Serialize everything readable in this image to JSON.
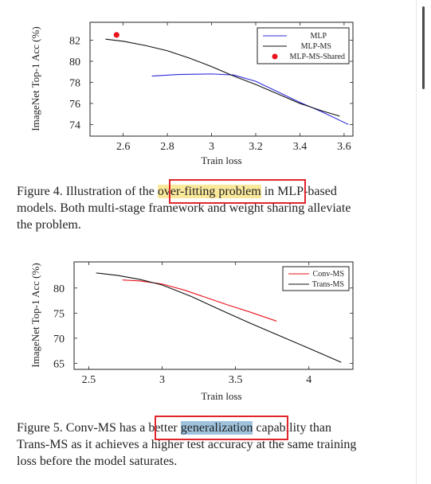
{
  "colors": {
    "mlp": "#2b2bdc",
    "mlp_ms": "#111111",
    "mlp_ms_shared": "#e8121c",
    "conv_ms": "#e8121c",
    "trans_ms": "#111111",
    "highlight_yellow": "#fbe99b",
    "highlight_blue": "#9fc3dd",
    "annotation_box": "#e0262b"
  },
  "figure4": {
    "caption_lines": [
      {
        "pre": "Figure 4.  Illustration of the ",
        "hl": "over-fitting problem",
        "post": " in MLP-based"
      },
      {
        "text": "models. Both multi-stage framework and weight sharing alleviate"
      },
      {
        "text": "the problem."
      }
    ]
  },
  "figure5": {
    "caption_lines": [
      {
        "pre": "Figure 5.  Conv-MS has a better ",
        "hl": "generalization",
        "post": " capability than"
      },
      {
        "text": "Trans-MS as it achieves a higher test accuracy at the same training"
      },
      {
        "text": "loss before the model saturates."
      }
    ]
  },
  "chart_data": [
    {
      "type": "line",
      "xlabel": "Train loss",
      "ylabel": "ImageNet Top-1 Acc (%)",
      "xlim": [
        2.45,
        3.64
      ],
      "ylim": [
        72.9,
        83.7
      ],
      "xticks": [
        2.6,
        2.8,
        3,
        3.2,
        3.4,
        3.6
      ],
      "xtick_labels": [
        "2.6",
        "2.8",
        "3",
        "3.2",
        "3.4",
        "3.6"
      ],
      "yticks": [
        74,
        76,
        78,
        80,
        82
      ],
      "ytick_labels": [
        "74",
        "76",
        "78",
        "80",
        "82"
      ],
      "grid": false,
      "legend_position": "top-right",
      "series": [
        {
          "name": "MLP",
          "kind": "line",
          "color": "#2b2bdc",
          "x": [
            2.73,
            2.85,
            3.0,
            3.1,
            3.2,
            3.3,
            3.4,
            3.5,
            3.62
          ],
          "y": [
            78.6,
            78.75,
            78.8,
            78.7,
            78.1,
            77.1,
            76.1,
            75.2,
            74.0
          ]
        },
        {
          "name": "MLP-MS",
          "kind": "line",
          "color": "#111111",
          "x": [
            2.52,
            2.6,
            2.7,
            2.8,
            2.9,
            3.0,
            3.1,
            3.2,
            3.3,
            3.4,
            3.5,
            3.58
          ],
          "y": [
            82.1,
            81.9,
            81.5,
            81.0,
            80.3,
            79.5,
            78.6,
            77.8,
            76.9,
            76.0,
            75.3,
            74.8
          ]
        },
        {
          "name": "MLP-MS-Shared",
          "kind": "point",
          "color": "#e8121c",
          "x": [
            2.57
          ],
          "y": [
            82.5
          ]
        }
      ]
    },
    {
      "type": "line",
      "xlabel": "Train loss",
      "ylabel": "ImageNet Top-1 Acc (%)",
      "xlim": [
        2.4,
        4.3
      ],
      "ylim": [
        63.8,
        85.2
      ],
      "xticks": [
        2.5,
        3,
        3.5,
        4
      ],
      "xtick_labels": [
        "2.5",
        "3",
        "3.5",
        "4"
      ],
      "yticks": [
        65,
        70,
        75,
        80
      ],
      "ytick_labels": [
        "65",
        "70",
        "75",
        "80"
      ],
      "grid": false,
      "legend_position": "top-right",
      "series": [
        {
          "name": "Conv-MS",
          "kind": "line",
          "color": "#e8121c",
          "x": [
            2.73,
            2.85,
            3.0,
            3.15,
            3.3,
            3.45,
            3.6,
            3.78
          ],
          "y": [
            81.6,
            81.4,
            80.8,
            79.6,
            78.1,
            76.6,
            75.2,
            73.4
          ]
        },
        {
          "name": "Trans-MS",
          "kind": "line",
          "color": "#111111",
          "x": [
            2.55,
            2.7,
            2.85,
            3.0,
            3.2,
            3.4,
            3.6,
            3.8,
            4.0,
            4.22
          ],
          "y": [
            83.0,
            82.5,
            81.7,
            80.6,
            78.3,
            75.6,
            73.0,
            70.5,
            68.0,
            65.2
          ]
        }
      ]
    }
  ]
}
